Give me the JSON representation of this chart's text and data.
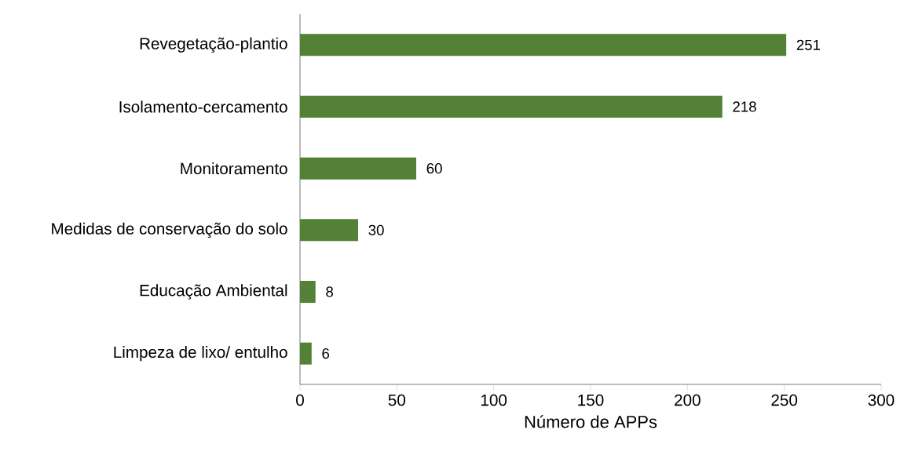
{
  "chart_data": {
    "type": "bar",
    "orientation": "horizontal",
    "xlabel": "Número de APPs",
    "categories": [
      "Revegetação-plantio",
      "Isolamento-cercamento",
      "Monitoramento",
      "Medidas de conservação do solo",
      "Educação Ambiental",
      "Limpeza de lixo/ entulho"
    ],
    "values": [
      251,
      218,
      60,
      30,
      8,
      6
    ],
    "color": "#538135",
    "xlim": [
      0,
      300
    ],
    "xticks": [
      0,
      50,
      100,
      150,
      200,
      250,
      300
    ],
    "data_labels": true
  }
}
